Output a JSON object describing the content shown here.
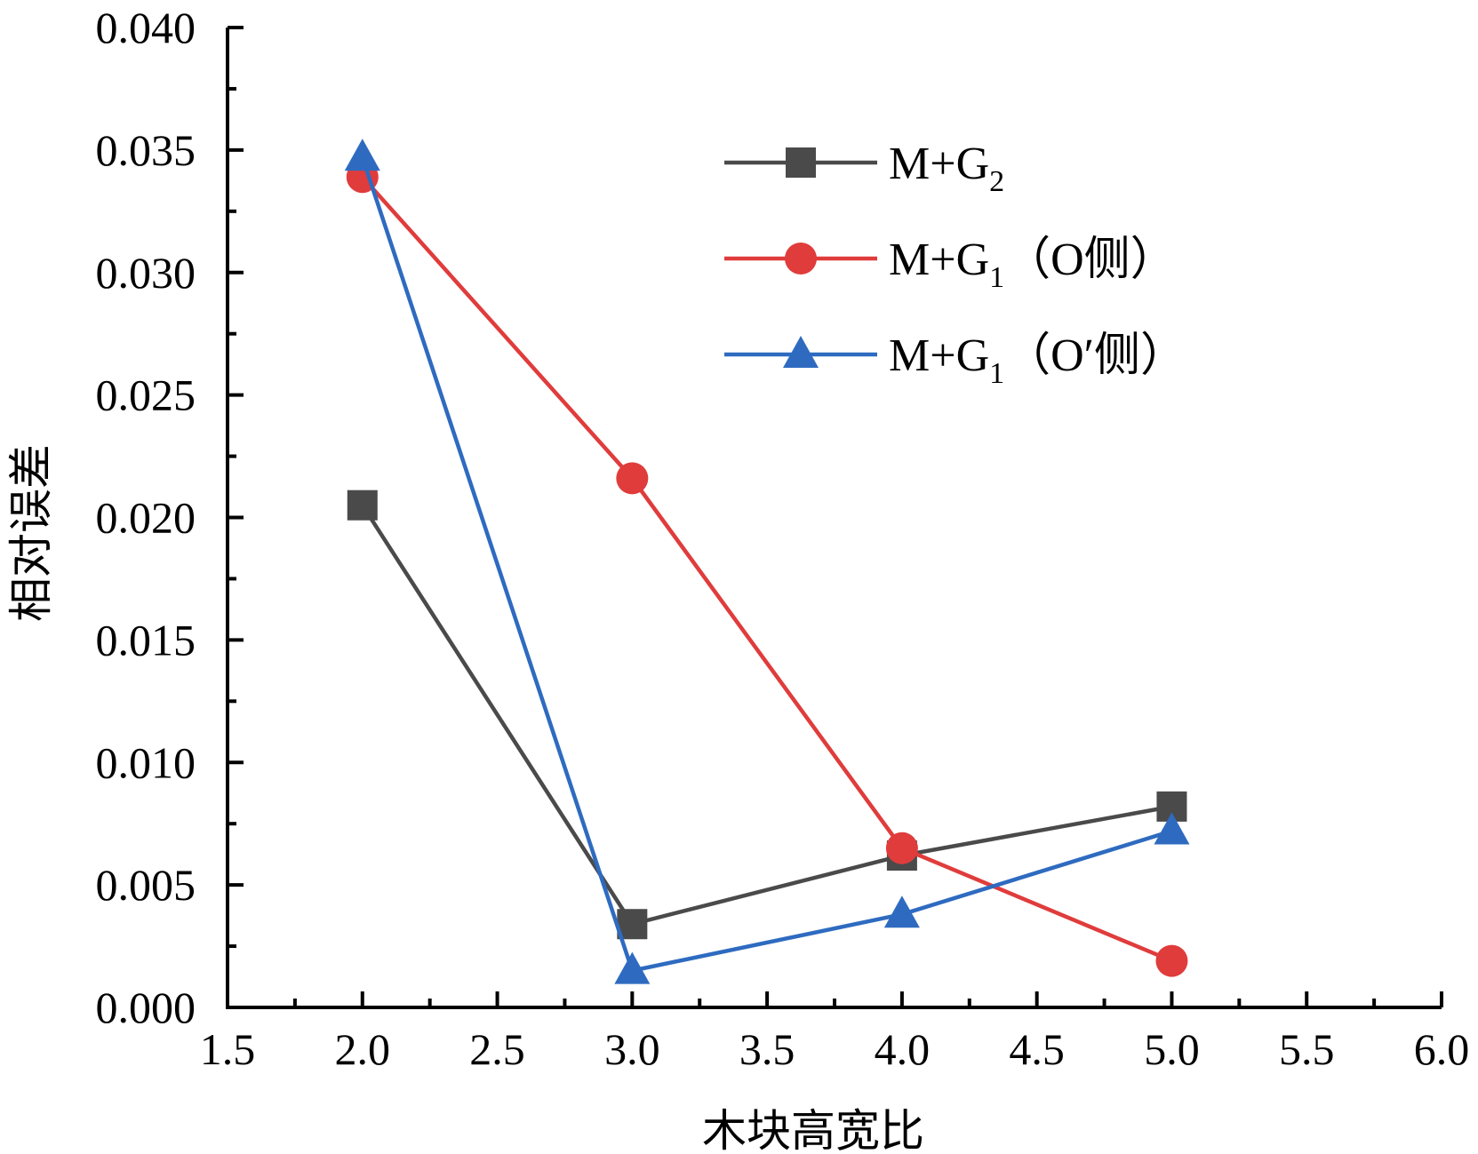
{
  "chart_data": {
    "type": "line",
    "title": "",
    "xlabel": "木块高宽比",
    "ylabel": "相对误差",
    "xlim": [
      1.5,
      6.0
    ],
    "ylim": [
      0.0,
      0.04
    ],
    "xticks": [
      "1.5",
      "2.0",
      "2.5",
      "3.0",
      "3.5",
      "4.0",
      "4.5",
      "5.0",
      "5.5",
      "6.0"
    ],
    "yticks": [
      "0.000",
      "0.005",
      "0.010",
      "0.015",
      "0.020",
      "0.025",
      "0.030",
      "0.035",
      "0.040"
    ],
    "grid": false,
    "legend_position": "top-right",
    "series": [
      {
        "name": "M+G2",
        "legend_main": "M+G",
        "legend_sub": "2",
        "legend_suffix": "",
        "marker": "square",
        "color": "#4a4a4a",
        "x": [
          2.0,
          3.0,
          4.0,
          5.0
        ],
        "values": [
          0.0205,
          0.0034,
          0.0062,
          0.0082
        ]
      },
      {
        "name": "M+G1（O侧）",
        "legend_main": "M+G",
        "legend_sub": "1",
        "legend_suffix": "（O侧）",
        "marker": "circle",
        "color": "#e03c3c",
        "x": [
          2.0,
          3.0,
          4.0,
          5.0
        ],
        "values": [
          0.0339,
          0.0216,
          0.0065,
          0.0019
        ]
      },
      {
        "name": "M+G1（O′侧）",
        "legend_main": "M+G",
        "legend_sub": "1",
        "legend_suffix": "（O′侧）",
        "marker": "triangle",
        "color": "#2e6bc0",
        "x": [
          2.0,
          3.0,
          4.0,
          5.0
        ],
        "values": [
          0.0347,
          0.0015,
          0.0038,
          0.0072
        ]
      }
    ]
  }
}
